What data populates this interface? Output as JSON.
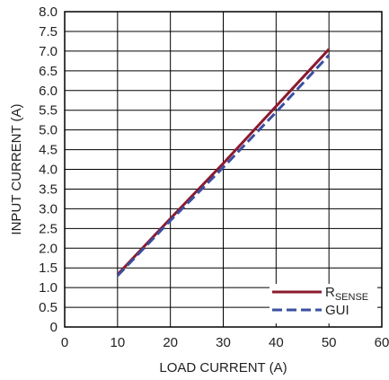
{
  "chart_data": {
    "type": "line",
    "xlabel": "LOAD CURRENT (A)",
    "ylabel": "INPUT CURRENT  (A)",
    "xlim": [
      0,
      60
    ],
    "ylim": [
      0,
      8
    ],
    "x_ticks": [
      0,
      10,
      20,
      30,
      40,
      50,
      60
    ],
    "y_ticks": [
      "0",
      "0.5",
      "1.0",
      "1.5",
      "2.0",
      "2.5",
      "3.0",
      "3.5",
      "4.0",
      "4.5",
      "5.0",
      "5.5",
      "6.0",
      "6.5",
      "7.0",
      "7.5",
      "8.0"
    ],
    "grid": true,
    "legend_position": "bottom-right",
    "series": [
      {
        "name": "RSENSE",
        "name_main": "R",
        "name_sub": "SENSE",
        "color": "#8b1a2e",
        "style": "solid",
        "x": [
          10,
          20,
          30,
          40,
          50
        ],
        "y": [
          1.33,
          2.75,
          4.15,
          5.6,
          7.05
        ]
      },
      {
        "name": "GUI",
        "color": "#3a4fa0",
        "style": "dashed",
        "x": [
          10,
          20,
          30,
          40,
          50
        ],
        "y": [
          1.3,
          2.7,
          4.05,
          5.45,
          6.9
        ]
      }
    ]
  }
}
